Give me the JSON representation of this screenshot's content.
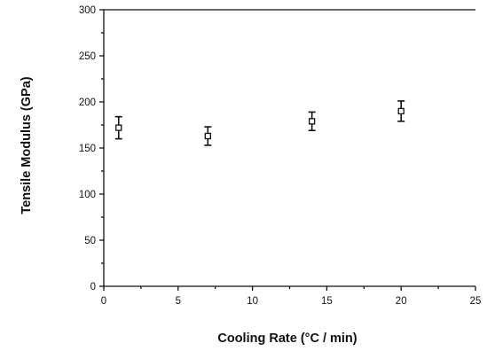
{
  "chart_data": {
    "type": "scatter",
    "xlabel": "Cooling Rate (°C / min)",
    "ylabel": "Tensile Modulus (GPa)",
    "xlim": [
      0,
      25
    ],
    "ylim": [
      0,
      300
    ],
    "x_ticks": [
      0,
      5,
      10,
      15,
      20,
      25
    ],
    "y_ticks": [
      0,
      50,
      100,
      150,
      200,
      250,
      300
    ],
    "grid": false,
    "marker": "open-square",
    "series": [
      {
        "x": [
          1,
          7,
          14,
          20
        ],
        "y": [
          172,
          163,
          179,
          190
        ],
        "error": [
          12,
          10,
          10,
          11
        ]
      }
    ]
  }
}
